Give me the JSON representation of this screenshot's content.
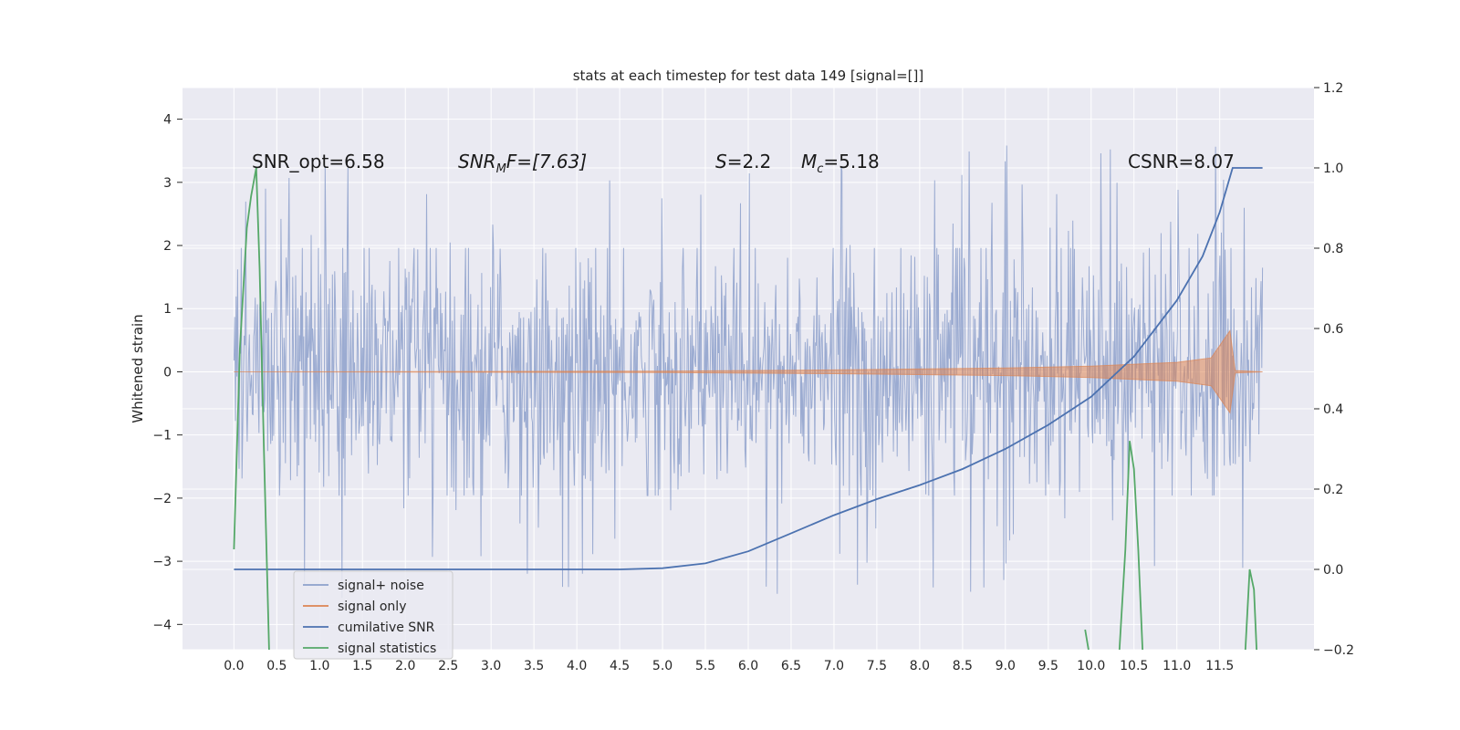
{
  "chart_data": {
    "type": "line",
    "title": "stats at each timestep for test data 149 [signal=[]]",
    "ylabel": "Whitened strain",
    "xlim": [
      -0.6,
      12.6
    ],
    "ylim": [
      -4.4,
      4.5
    ],
    "y2lim": [
      -0.2,
      1.2
    ],
    "grid": true,
    "legend_placement": "lower-left",
    "x_ticks": [
      "0.0",
      "0.5",
      "1.0",
      "1.5",
      "2.0",
      "2.5",
      "3.0",
      "3.5",
      "4.0",
      "4.5",
      "5.0",
      "5.5",
      "6.0",
      "6.5",
      "7.0",
      "7.5",
      "8.0",
      "8.5",
      "9.0",
      "9.5",
      "10.0",
      "10.5",
      "11.0",
      "11.5"
    ],
    "y_ticks": [
      "4",
      "3",
      "2",
      "1",
      "0",
      "−1",
      "−2",
      "−3",
      "−4"
    ],
    "y2_ticks": [
      "1.2",
      "1.0",
      "0.8",
      "0.6",
      "0.4",
      "0.2",
      "0.0",
      "−0.2"
    ],
    "annotations": {
      "snr_opt": "SNR_opt=6.58",
      "snr_mf_main": "SNR",
      "snr_mf_sub": "M",
      "snr_mf_rest": "F=[7.63]",
      "s_var": "S",
      "s_rest": "=2.2",
      "mc_var": "M",
      "mc_sub": "c",
      "mc_rest": "=5.18",
      "csnr": "CSNR=8.07"
    },
    "series": [
      {
        "name": "signal+ noise",
        "color": "#8da0cb",
        "axis": "left",
        "description": "whitened strain noise, approx. ±1.9 with spikes to ±3–4, t from 0.0 to 12.0"
      },
      {
        "name": "signal only",
        "color": "#dd8452",
        "axis": "left",
        "envelope": {
          "x": [
            0,
            5,
            7,
            9,
            10,
            11,
            11.4,
            11.62,
            11.68,
            12.0
          ],
          "y": [
            0.0,
            0.01,
            0.03,
            0.06,
            0.09,
            0.15,
            0.22,
            0.65,
            0.02,
            0.0
          ]
        }
      },
      {
        "name": "cumilative SNR",
        "color": "#4c72b0",
        "axis": "right",
        "x": [
          0,
          4.5,
          5.0,
          5.5,
          6.0,
          6.5,
          7.0,
          7.5,
          8.0,
          8.5,
          9.0,
          9.5,
          10.0,
          10.5,
          11.0,
          11.3,
          11.5,
          11.65,
          11.7,
          12.0
        ],
        "y": [
          0.0,
          0.0,
          0.003,
          0.015,
          0.045,
          0.09,
          0.135,
          0.175,
          0.21,
          0.25,
          0.3,
          0.36,
          0.43,
          0.53,
          0.67,
          0.78,
          0.89,
          1.0,
          1.0,
          1.0
        ]
      },
      {
        "name": "signal statistics",
        "color": "#55a868",
        "axis": "right",
        "segments": [
          {
            "x": [
              0.0,
              0.07,
              0.15,
              0.2,
              0.26,
              0.3,
              0.35,
              0.41
            ],
            "y": [
              0.05,
              0.55,
              0.85,
              0.93,
              1.0,
              0.75,
              0.3,
              -0.2
            ]
          },
          {
            "x": [
              9.93,
              9.97
            ],
            "y": [
              -0.15,
              -0.2
            ]
          },
          {
            "x": [
              10.33,
              10.4,
              10.45,
              10.5,
              10.55,
              10.6
            ],
            "y": [
              -0.2,
              0.05,
              0.32,
              0.25,
              0.05,
              -0.2
            ]
          },
          {
            "x": [
              11.8,
              11.85,
              11.9,
              11.93
            ],
            "y": [
              -0.2,
              0.0,
              -0.05,
              -0.2
            ]
          }
        ]
      }
    ]
  }
}
